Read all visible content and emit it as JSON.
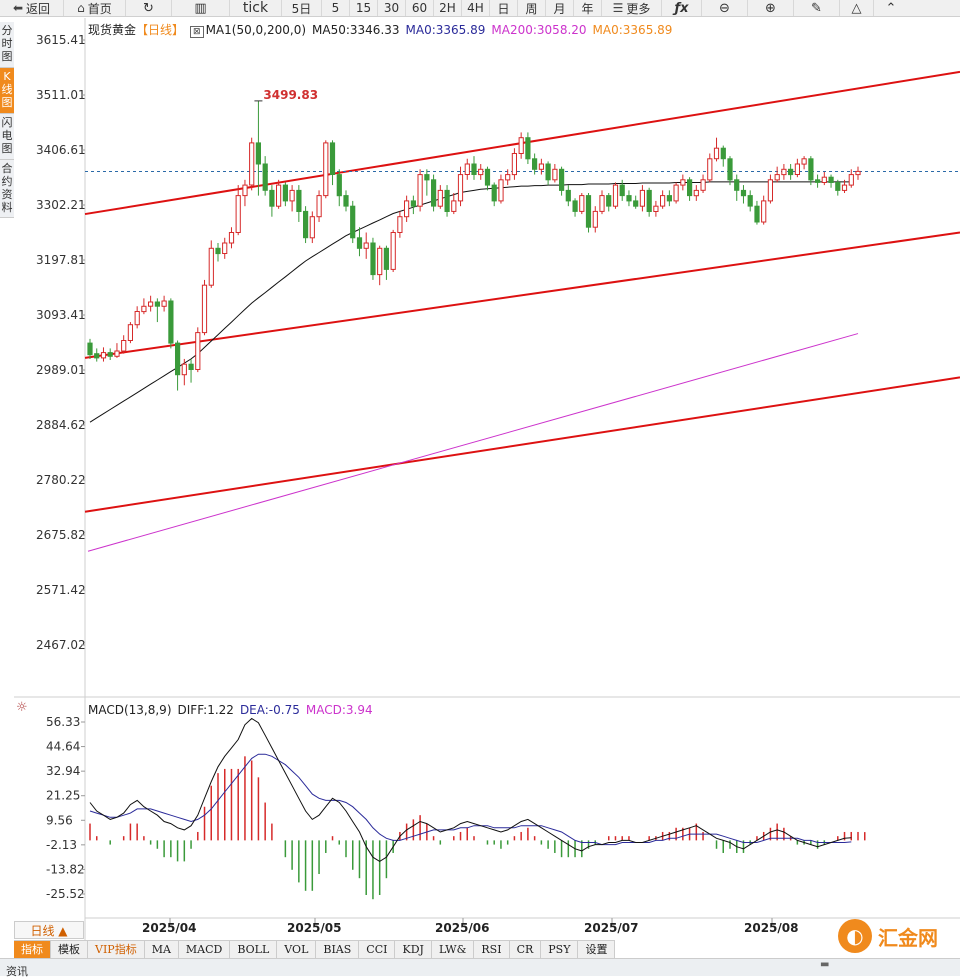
{
  "toolbar": {
    "back": "返回",
    "home": "首页",
    "periods": [
      "tick",
      "5日",
      "5",
      "15",
      "30",
      "60",
      "2H",
      "4H",
      "日",
      "周",
      "月",
      "年"
    ],
    "more": "更多"
  },
  "side_tabs": [
    {
      "label": "分时图",
      "active": false
    },
    {
      "label": "K线图",
      "active": true
    },
    {
      "label": "闪电图",
      "active": false
    },
    {
      "label": "合约资料",
      "active": false
    }
  ],
  "legend": {
    "symbol": "现货黄金",
    "period": "【日线】",
    "ma1": "MA1(50,0,200,0)",
    "ma50": "MA50:3346.33",
    "ma0a": "MA0:3365.89",
    "ma200": "MA200:3058.20",
    "ma0b": "MA0:3365.89"
  },
  "macd_legend": {
    "name": "MACD(13,8,9)",
    "diff": "DIFF:1.22",
    "dea": "DEA:-0.75",
    "macd": "MACD:3.94"
  },
  "period_button": "日线 ▲",
  "indicator_tabs": [
    "指标",
    "模板",
    "VIP指标",
    "MA",
    "MACD",
    "BOLL",
    "VOL",
    "BIAS",
    "CCI",
    "KDJ",
    "LW&",
    "RSI",
    "CR",
    "PSY",
    "设置"
  ],
  "bottom_label": "资讯",
  "logo": {
    "text": "汇金网"
  },
  "colors": {
    "up": "#d62a2a",
    "down": "#3a9a3a",
    "ma50": "#111111",
    "ma200": "#cc33cc",
    "channel": "#dd1111",
    "dea": "#2b2b9a",
    "accent": "#f08a1d"
  },
  "chart_data": [
    {
      "type": "candlestick",
      "title": "现货黄金【日线】",
      "y_ticks": [
        "3615.41",
        "3511.01",
        "3406.61",
        "3302.21",
        "3197.81",
        "3093.41",
        "2989.01",
        "2884.62",
        "2780.22",
        "2675.82",
        "2571.42",
        "2467.02"
      ],
      "ylim": [
        2467.02,
        3615.41
      ],
      "x_ticks": [
        "2025/04",
        "2025/05",
        "2025/06",
        "2025/07",
        "2025/08"
      ],
      "annotation": {
        "label": "3499.83",
        "value": 3499.83,
        "index": 25
      },
      "last_price": 3365.89,
      "candles": [
        [
          3040,
          3018,
          3048,
          3010
        ],
        [
          3020,
          3012,
          3030,
          3005
        ],
        [
          3012,
          3022,
          3032,
          3005
        ],
        [
          3022,
          3015,
          3030,
          3008
        ],
        [
          3015,
          3025,
          3040,
          3012
        ],
        [
          3025,
          3045,
          3055,
          3020
        ],
        [
          3045,
          3075,
          3080,
          3040
        ],
        [
          3075,
          3100,
          3110,
          3068
        ],
        [
          3100,
          3110,
          3125,
          3095
        ],
        [
          3110,
          3118,
          3130,
          3100
        ],
        [
          3118,
          3110,
          3125,
          3080
        ],
        [
          3110,
          3120,
          3130,
          3100
        ],
        [
          3120,
          3040,
          3125,
          3030
        ],
        [
          3040,
          2980,
          3045,
          2950
        ],
        [
          2980,
          3000,
          3010,
          2960
        ],
        [
          3000,
          2990,
          3010,
          2965
        ],
        [
          2990,
          3060,
          3070,
          2985
        ],
        [
          3060,
          3150,
          3160,
          3055
        ],
        [
          3150,
          3220,
          3235,
          3145
        ],
        [
          3220,
          3210,
          3230,
          3195
        ],
        [
          3210,
          3230,
          3240,
          3200
        ],
        [
          3230,
          3250,
          3260,
          3220
        ],
        [
          3250,
          3320,
          3340,
          3245
        ],
        [
          3320,
          3340,
          3350,
          3300
        ],
        [
          3340,
          3420,
          3430,
          3330
        ],
        [
          3420,
          3380,
          3499.83,
          3320
        ],
        [
          3380,
          3330,
          3395,
          3320
        ],
        [
          3330,
          3300,
          3340,
          3280
        ],
        [
          3300,
          3340,
          3350,
          3295
        ],
        [
          3340,
          3310,
          3345,
          3300
        ],
        [
          3310,
          3330,
          3340,
          3290
        ],
        [
          3330,
          3290,
          3340,
          3270
        ],
        [
          3290,
          3240,
          3300,
          3230
        ],
        [
          3240,
          3280,
          3290,
          3230
        ],
        [
          3280,
          3320,
          3330,
          3270
        ],
        [
          3320,
          3420,
          3425,
          3315
        ],
        [
          3420,
          3360,
          3425,
          3340
        ],
        [
          3360,
          3320,
          3370,
          3300
        ],
        [
          3320,
          3300,
          3330,
          3290
        ],
        [
          3300,
          3240,
          3310,
          3230
        ],
        [
          3240,
          3220,
          3260,
          3205
        ],
        [
          3220,
          3230,
          3250,
          3200
        ],
        [
          3230,
          3170,
          3240,
          3160
        ],
        [
          3170,
          3220,
          3225,
          3150
        ],
        [
          3220,
          3180,
          3225,
          3160
        ],
        [
          3180,
          3250,
          3255,
          3175
        ],
        [
          3250,
          3280,
          3290,
          3240
        ],
        [
          3280,
          3310,
          3320,
          3270
        ],
        [
          3310,
          3300,
          3320,
          3285
        ],
        [
          3300,
          3360,
          3370,
          3290
        ],
        [
          3360,
          3350,
          3370,
          3320
        ],
        [
          3350,
          3300,
          3360,
          3290
        ],
        [
          3300,
          3330,
          3340,
          3295
        ],
        [
          3330,
          3290,
          3340,
          3280
        ],
        [
          3290,
          3310,
          3325,
          3285
        ],
        [
          3310,
          3360,
          3375,
          3300
        ],
        [
          3360,
          3380,
          3390,
          3350
        ],
        [
          3380,
          3360,
          3395,
          3350
        ],
        [
          3360,
          3370,
          3380,
          3350
        ],
        [
          3370,
          3340,
          3375,
          3330
        ],
        [
          3340,
          3310,
          3345,
          3300
        ],
        [
          3310,
          3350,
          3360,
          3305
        ],
        [
          3350,
          3360,
          3370,
          3340
        ],
        [
          3360,
          3400,
          3410,
          3350
        ],
        [
          3400,
          3430,
          3440,
          3390
        ],
        [
          3430,
          3390,
          3440,
          3380
        ],
        [
          3390,
          3370,
          3400,
          3360
        ],
        [
          3370,
          3380,
          3390,
          3360
        ],
        [
          3380,
          3350,
          3385,
          3340
        ],
        [
          3350,
          3370,
          3380,
          3345
        ],
        [
          3370,
          3330,
          3375,
          3320
        ],
        [
          3330,
          3310,
          3340,
          3300
        ],
        [
          3310,
          3290,
          3315,
          3280
        ],
        [
          3290,
          3320,
          3325,
          3285
        ],
        [
          3320,
          3260,
          3325,
          3250
        ],
        [
          3260,
          3290,
          3300,
          3250
        ],
        [
          3290,
          3320,
          3330,
          3285
        ],
        [
          3320,
          3300,
          3325,
          3290
        ],
        [
          3300,
          3340,
          3345,
          3295
        ],
        [
          3340,
          3320,
          3350,
          3310
        ],
        [
          3320,
          3310,
          3330,
          3300
        ],
        [
          3310,
          3300,
          3320,
          3295
        ],
        [
          3300,
          3330,
          3340,
          3290
        ],
        [
          3330,
          3290,
          3335,
          3280
        ],
        [
          3290,
          3300,
          3310,
          3280
        ],
        [
          3300,
          3320,
          3330,
          3295
        ],
        [
          3320,
          3310,
          3330,
          3300
        ],
        [
          3310,
          3340,
          3345,
          3305
        ],
        [
          3340,
          3350,
          3360,
          3330
        ],
        [
          3350,
          3320,
          3355,
          3310
        ],
        [
          3320,
          3330,
          3340,
          3310
        ],
        [
          3330,
          3350,
          3360,
          3325
        ],
        [
          3350,
          3390,
          3400,
          3345
        ],
        [
          3390,
          3410,
          3430,
          3385
        ],
        [
          3410,
          3390,
          3415,
          3375
        ],
        [
          3390,
          3350,
          3395,
          3340
        ],
        [
          3350,
          3330,
          3360,
          3310
        ],
        [
          3330,
          3320,
          3340,
          3305
        ],
        [
          3320,
          3300,
          3330,
          3290
        ],
        [
          3300,
          3270,
          3310,
          3265
        ],
        [
          3270,
          3310,
          3320,
          3265
        ],
        [
          3310,
          3350,
          3360,
          3305
        ],
        [
          3350,
          3360,
          3375,
          3345
        ],
        [
          3360,
          3370,
          3380,
          3350
        ],
        [
          3370,
          3360,
          3380,
          3350
        ],
        [
          3360,
          3380,
          3390,
          3355
        ],
        [
          3380,
          3390,
          3395,
          3370
        ],
        [
          3390,
          3350,
          3395,
          3340
        ],
        [
          3350,
          3345,
          3360,
          3335
        ],
        [
          3345,
          3355,
          3365,
          3340
        ],
        [
          3355,
          3345,
          3360,
          3335
        ],
        [
          3345,
          3330,
          3350,
          3320
        ],
        [
          3330,
          3340,
          3350,
          3325
        ],
        [
          3340,
          3360,
          3370,
          3335
        ],
        [
          3360,
          3366,
          3375,
          3350
        ]
      ],
      "ma50": [
        2890,
        2898,
        2906,
        2914,
        2922,
        2930,
        2938,
        2946,
        2954,
        2962,
        2970,
        2978,
        2986,
        2994,
        3002,
        3010,
        3020,
        3032,
        3044,
        3056,
        3068,
        3080,
        3092,
        3104,
        3116,
        3126,
        3136,
        3146,
        3156,
        3166,
        3176,
        3186,
        3196,
        3204,
        3212,
        3220,
        3228,
        3236,
        3244,
        3250,
        3256,
        3262,
        3268,
        3274,
        3280,
        3286,
        3290,
        3294,
        3298,
        3302,
        3306,
        3310,
        3314,
        3318,
        3322,
        3326,
        3328,
        3330,
        3332,
        3333,
        3334,
        3335,
        3336,
        3337,
        3338,
        3338,
        3339,
        3339,
        3340,
        3340,
        3340,
        3341,
        3341,
        3341,
        3342,
        3342,
        3342,
        3342,
        3343,
        3343,
        3343,
        3343,
        3344,
        3344,
        3344,
        3344,
        3344,
        3345,
        3345,
        3345,
        3345,
        3345,
        3346,
        3346,
        3346,
        3346,
        3346,
        3346,
        3346,
        3346,
        3346,
        3346,
        3346,
        3346,
        3346,
        3346,
        3346,
        3346,
        3346,
        3346,
        3346,
        3346,
        3346,
        3346
      ],
      "ma200": {
        "start": 2645,
        "end": 3058.2
      },
      "channel_lines": [
        {
          "start": 3285,
          "end": 3555
        },
        {
          "start": 3012,
          "end": 3250
        },
        {
          "start": 2720,
          "end": 2975
        }
      ]
    },
    {
      "type": "macd",
      "y_ticks": [
        "56.33",
        "44.64",
        "32.94",
        "21.25",
        "9.56",
        "-2.13",
        "-13.82",
        "-25.52"
      ],
      "ylim": [
        -25.52,
        56.33
      ],
      "diff": [
        18,
        14,
        12,
        10,
        11,
        13,
        17,
        19,
        16,
        14,
        12,
        9,
        8,
        6,
        5,
        7,
        12,
        20,
        28,
        35,
        40,
        44,
        48,
        55,
        58,
        56,
        50,
        44,
        38,
        32,
        26,
        20,
        14,
        10,
        12,
        16,
        20,
        18,
        14,
        9,
        4,
        -3,
        -8,
        -10,
        -8,
        -3,
        2,
        5,
        7,
        9,
        8,
        6,
        4,
        5,
        6,
        8,
        9,
        8,
        7,
        6,
        5,
        4,
        5,
        7,
        9,
        10,
        8,
        6,
        4,
        2,
        0,
        -2,
        -4,
        -5,
        -3,
        -2,
        -2,
        -1,
        -1,
        0,
        0,
        -1,
        -1,
        0,
        1,
        2,
        3,
        4,
        5,
        6,
        7,
        5,
        3,
        1,
        0,
        -1,
        -3,
        -4,
        -2,
        0,
        2,
        4,
        5,
        4,
        2,
        0,
        -1,
        -2,
        -3,
        -2,
        -1,
        0,
        1,
        1.22
      ],
      "dea": [
        14,
        13,
        12,
        11,
        11,
        12,
        13,
        15,
        15,
        15,
        14,
        13,
        12,
        11,
        10,
        9,
        10,
        12,
        15,
        19,
        23,
        27,
        31,
        35,
        39,
        41,
        41,
        40,
        38,
        36,
        33,
        30,
        26,
        22,
        20,
        19,
        19,
        19,
        18,
        16,
        13,
        10,
        6,
        3,
        1,
        0,
        0,
        1,
        2,
        3,
        4,
        5,
        5,
        5,
        5,
        6,
        6,
        7,
        7,
        7,
        6,
        6,
        6,
        6,
        7,
        7,
        7,
        7,
        6,
        5,
        4,
        2,
        0,
        -1,
        -1,
        -1,
        -2,
        -2,
        -2,
        -1,
        -1,
        -1,
        -1,
        -1,
        0,
        0,
        1,
        1,
        2,
        3,
        3,
        3,
        3,
        3,
        2,
        1,
        0,
        -1,
        -1,
        -1,
        0,
        1,
        1,
        1,
        1,
        1,
        0,
        0,
        -1,
        -1,
        -1,
        -1,
        -1,
        -0.75
      ],
      "macd_hist": [
        8,
        2,
        0,
        -2,
        0,
        2,
        8,
        8,
        2,
        -2,
        -4,
        -8,
        -8,
        -10,
        -10,
        -4,
        4,
        16,
        26,
        32,
        34,
        34,
        34,
        40,
        38,
        30,
        18,
        8,
        0,
        -8,
        -14,
        -20,
        -24,
        -24,
        -16,
        -6,
        2,
        -2,
        -8,
        -14,
        -18,
        -26,
        -28,
        -26,
        -18,
        -6,
        4,
        8,
        10,
        12,
        8,
        2,
        -2,
        0,
        2,
        4,
        6,
        2,
        0,
        -2,
        -2,
        -4,
        -2,
        2,
        4,
        6,
        2,
        -2,
        -4,
        -6,
        -8,
        -8,
        -8,
        -8,
        -4,
        -2,
        0,
        2,
        2,
        2,
        2,
        0,
        0,
        2,
        2,
        4,
        4,
        6,
        6,
        6,
        8,
        4,
        0,
        -4,
        -6,
        -4,
        -6,
        -6,
        -2,
        2,
        4,
        6,
        8,
        6,
        2,
        -2,
        -2,
        -2,
        -4,
        -2,
        0,
        2,
        4,
        4,
        4,
        3.94
      ]
    }
  ]
}
